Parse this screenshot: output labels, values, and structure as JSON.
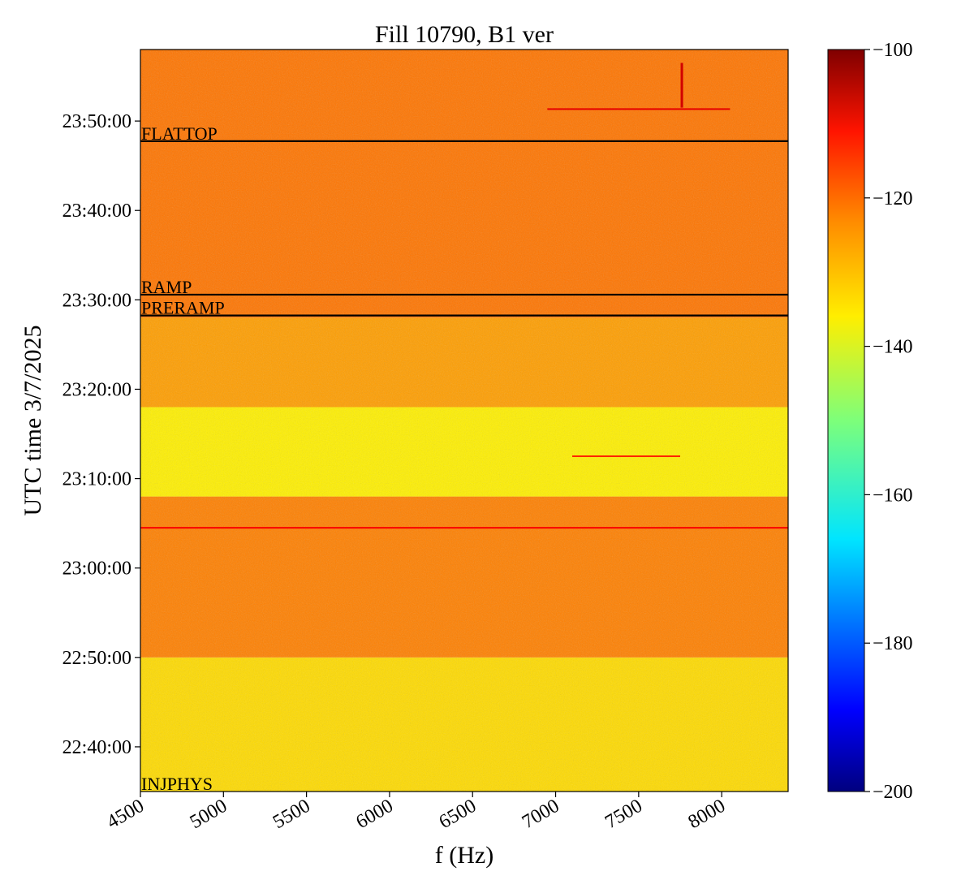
{
  "chart_data": {
    "type": "heatmap",
    "title": "Fill 10790, B1 ver",
    "xlabel": "f (Hz)",
    "ylabel": "UTC time 3/7/2025",
    "xlim": [
      4500,
      8400
    ],
    "x_ticks": [
      4500,
      5000,
      5500,
      6000,
      6500,
      7000,
      7500,
      8000
    ],
    "x_tick_labels": [
      "4500",
      "5000",
      "5500",
      "6000",
      "6500",
      "7000",
      "7500",
      "8000"
    ],
    "ylim": [
      "22:35:00",
      "23:58:00"
    ],
    "y_ticks": [
      "22:40:00",
      "22:50:00",
      "23:00:00",
      "23:10:00",
      "23:20:00",
      "23:30:00",
      "23:40:00",
      "23:50:00"
    ],
    "y_tick_labels": [
      "22:40:00",
      "22:50:00",
      "23:00:00",
      "23:10:00",
      "23:20:00",
      "23:30:00",
      "23:40:00",
      "23:50:00"
    ],
    "colormap": "jet",
    "colorbar": {
      "min": -200,
      "max": -100,
      "ticks": [
        -200,
        -180,
        -160,
        -140,
        -120,
        -100
      ],
      "tick_labels": [
        "−200",
        "−180",
        "−160",
        "−140",
        "−120",
        "−100"
      ]
    },
    "event_lines": [
      {
        "label": "FLATTOP",
        "time": "23:47:45"
      },
      {
        "label": "RAMP",
        "time": "23:30:35"
      },
      {
        "label": "PRERAMP",
        "time": "23:28:15"
      },
      {
        "label": "INJPHYS",
        "time": "22:35:00"
      }
    ],
    "background_bands": [
      {
        "from": "22:35:00",
        "to": "22:50:00",
        "level": -134
      },
      {
        "from": "22:50:00",
        "to": "23:08:00",
        "level": -125
      },
      {
        "from": "23:08:00",
        "to": "23:18:00",
        "level": -136
      },
      {
        "from": "23:18:00",
        "to": "23:28:00",
        "level": -128
      },
      {
        "from": "23:28:00",
        "to": "23:58:00",
        "level": -124
      }
    ],
    "features": [
      {
        "kind": "horizontal-line",
        "time": "23:04:30",
        "f_from": 4500,
        "f_to": 8400,
        "level": -112
      },
      {
        "kind": "horizontal-line",
        "time": "23:12:30",
        "f_from": 7100,
        "f_to": 7750,
        "level": -116
      },
      {
        "kind": "horizontal-line",
        "time": "23:51:20",
        "f_from": 6950,
        "f_to": 8050,
        "level": -110
      },
      {
        "kind": "vertical-line",
        "f": 7760,
        "t_from": "23:51:30",
        "t_to": "23:56:30",
        "level": -108
      }
    ]
  }
}
